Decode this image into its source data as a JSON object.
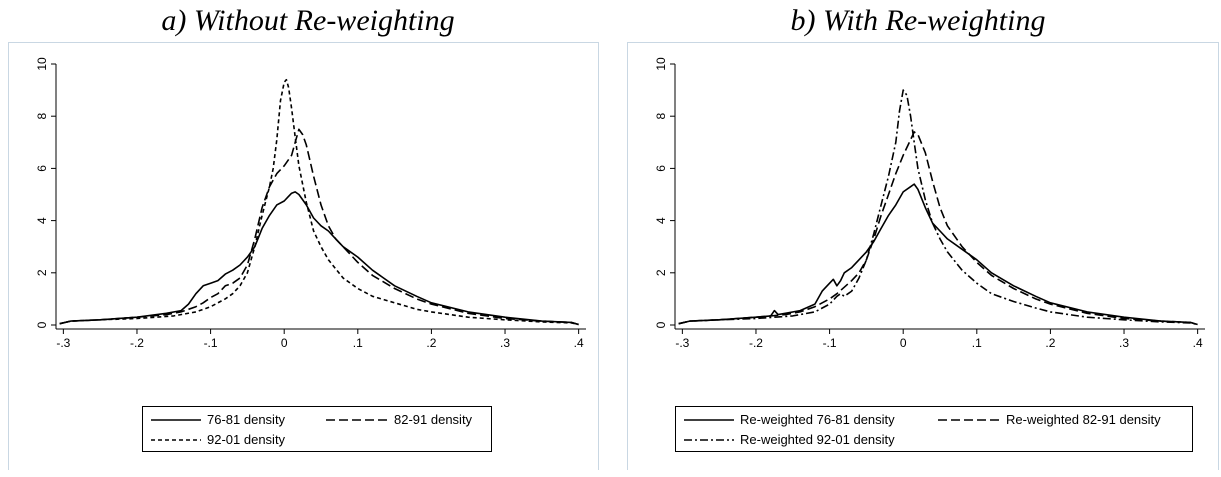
{
  "chart_data": [
    {
      "type": "line",
      "title": "a) Without Re-weighting",
      "xlabel": "",
      "ylabel": "",
      "xlim": [
        -0.31,
        0.41
      ],
      "ylim": [
        0,
        10
      ],
      "x_ticks": [
        -0.3,
        -0.2,
        -0.1,
        0,
        0.1,
        0.2,
        0.3,
        0.4
      ],
      "x_tick_labels": [
        "-.3",
        "-.2",
        "-.1",
        "0",
        ".1",
        ".2",
        ".3",
        ".4"
      ],
      "y_ticks": [
        0,
        2,
        4,
        6,
        8,
        10
      ],
      "y_tick_labels": [
        "0",
        "2",
        "4",
        "6",
        "8",
        "10"
      ],
      "grid": false,
      "legend_position": "bottom",
      "series": [
        {
          "name": "76-81 density",
          "style": "solid",
          "color": "#000000",
          "x": [
            -0.305,
            -0.29,
            -0.25,
            -0.2,
            -0.16,
            -0.14,
            -0.13,
            -0.12,
            -0.11,
            -0.1,
            -0.09,
            -0.08,
            -0.07,
            -0.06,
            -0.05,
            -0.04,
            -0.03,
            -0.02,
            -0.01,
            0,
            0.005,
            0.01,
            0.015,
            0.02,
            0.03,
            0.04,
            0.05,
            0.06,
            0.07,
            0.08,
            0.1,
            0.12,
            0.15,
            0.18,
            0.2,
            0.25,
            0.3,
            0.35,
            0.39,
            0.4
          ],
          "y": [
            0.05,
            0.15,
            0.2,
            0.3,
            0.45,
            0.55,
            0.8,
            1.2,
            1.5,
            1.6,
            1.7,
            1.95,
            2.1,
            2.3,
            2.6,
            3.0,
            3.7,
            4.2,
            4.6,
            4.75,
            4.9,
            5.05,
            5.1,
            5.0,
            4.6,
            4.1,
            3.8,
            3.6,
            3.3,
            3.0,
            2.6,
            2.1,
            1.5,
            1.1,
            0.85,
            0.5,
            0.3,
            0.15,
            0.1,
            0.02
          ]
        },
        {
          "name": "82-91 density",
          "style": "longdash",
          "color": "#000000",
          "x": [
            -0.305,
            -0.29,
            -0.25,
            -0.2,
            -0.16,
            -0.14,
            -0.12,
            -0.11,
            -0.1,
            -0.09,
            -0.08,
            -0.07,
            -0.06,
            -0.05,
            -0.04,
            -0.03,
            -0.02,
            -0.01,
            0,
            0.01,
            0.015,
            0.02,
            0.025,
            0.03,
            0.04,
            0.05,
            0.06,
            0.07,
            0.08,
            0.1,
            0.12,
            0.15,
            0.18,
            0.2,
            0.25,
            0.3,
            0.35,
            0.39,
            0.4
          ],
          "y": [
            0.05,
            0.15,
            0.2,
            0.3,
            0.4,
            0.5,
            0.7,
            0.85,
            1.05,
            1.2,
            1.5,
            1.6,
            1.8,
            2.3,
            3.3,
            4.5,
            5.3,
            5.8,
            6.1,
            6.5,
            7.0,
            7.5,
            7.3,
            6.9,
            5.7,
            4.6,
            3.8,
            3.3,
            3.0,
            2.4,
            1.9,
            1.4,
            1.0,
            0.8,
            0.45,
            0.25,
            0.15,
            0.1,
            0.02
          ]
        },
        {
          "name": "92-01 density",
          "style": "shortdash",
          "color": "#000000",
          "x": [
            -0.305,
            -0.29,
            -0.25,
            -0.2,
            -0.15,
            -0.12,
            -0.1,
            -0.09,
            -0.08,
            -0.07,
            -0.06,
            -0.05,
            -0.04,
            -0.03,
            -0.02,
            -0.015,
            -0.01,
            -0.005,
            0,
            0.003,
            0.006,
            0.01,
            0.015,
            0.02,
            0.03,
            0.04,
            0.05,
            0.06,
            0.08,
            0.1,
            0.12,
            0.15,
            0.18,
            0.2,
            0.25,
            0.3,
            0.35,
            0.39,
            0.4
          ],
          "y": [
            0.05,
            0.15,
            0.2,
            0.25,
            0.35,
            0.5,
            0.7,
            0.85,
            1.0,
            1.2,
            1.5,
            2.0,
            3.0,
            4.2,
            5.3,
            6.0,
            7.1,
            8.6,
            9.3,
            9.4,
            9.1,
            8.3,
            7.2,
            6.1,
            4.7,
            3.6,
            3.0,
            2.5,
            1.8,
            1.4,
            1.1,
            0.85,
            0.6,
            0.5,
            0.3,
            0.2,
            0.12,
            0.08,
            0.02
          ]
        }
      ]
    },
    {
      "type": "line",
      "title": "b) With Re-weighting",
      "xlabel": "",
      "ylabel": "",
      "xlim": [
        -0.31,
        0.41
      ],
      "ylim": [
        0,
        10
      ],
      "x_ticks": [
        -0.3,
        -0.2,
        -0.1,
        0,
        0.1,
        0.2,
        0.3,
        0.4
      ],
      "x_tick_labels": [
        "-.3",
        "-.2",
        "-.1",
        "0",
        ".1",
        ".2",
        ".3",
        ".4"
      ],
      "y_ticks": [
        0,
        2,
        4,
        6,
        8,
        10
      ],
      "y_tick_labels": [
        "0",
        "2",
        "4",
        "6",
        "8",
        "10"
      ],
      "grid": false,
      "legend_position": "bottom",
      "series": [
        {
          "name": "Re-weighted 76-81 density",
          "style": "solid",
          "color": "#000000",
          "x": [
            -0.305,
            -0.29,
            -0.25,
            -0.2,
            -0.18,
            -0.175,
            -0.17,
            -0.16,
            -0.14,
            -0.12,
            -0.11,
            -0.1,
            -0.095,
            -0.09,
            -0.085,
            -0.08,
            -0.07,
            -0.06,
            -0.05,
            -0.04,
            -0.03,
            -0.02,
            -0.01,
            0,
            0.01,
            0.015,
            0.02,
            0.03,
            0.04,
            0.05,
            0.06,
            0.08,
            0.1,
            0.12,
            0.15,
            0.18,
            0.2,
            0.25,
            0.3,
            0.35,
            0.39,
            0.4
          ],
          "y": [
            0.05,
            0.15,
            0.2,
            0.3,
            0.35,
            0.55,
            0.4,
            0.45,
            0.55,
            0.8,
            1.3,
            1.6,
            1.75,
            1.5,
            1.7,
            2.0,
            2.2,
            2.5,
            2.8,
            3.2,
            3.7,
            4.2,
            4.6,
            5.1,
            5.3,
            5.4,
            5.2,
            4.5,
            3.9,
            3.6,
            3.3,
            2.9,
            2.5,
            2.0,
            1.5,
            1.1,
            0.85,
            0.5,
            0.3,
            0.15,
            0.1,
            0.02
          ]
        },
        {
          "name": "Re-weighted 82-91 density",
          "style": "longdash",
          "color": "#000000",
          "x": [
            -0.305,
            -0.29,
            -0.25,
            -0.2,
            -0.16,
            -0.14,
            -0.12,
            -0.1,
            -0.09,
            -0.08,
            -0.07,
            -0.06,
            -0.05,
            -0.04,
            -0.03,
            -0.02,
            -0.01,
            0,
            0.01,
            0.015,
            0.02,
            0.03,
            0.04,
            0.05,
            0.06,
            0.08,
            0.1,
            0.12,
            0.15,
            0.18,
            0.2,
            0.25,
            0.3,
            0.35,
            0.39,
            0.4
          ],
          "y": [
            0.05,
            0.15,
            0.2,
            0.3,
            0.4,
            0.5,
            0.7,
            1.0,
            1.2,
            1.45,
            1.7,
            2.0,
            2.5,
            3.3,
            4.2,
            5.0,
            5.8,
            6.5,
            7.1,
            7.4,
            7.3,
            6.6,
            5.5,
            4.5,
            3.8,
            3.0,
            2.4,
            1.9,
            1.4,
            1.0,
            0.8,
            0.45,
            0.25,
            0.15,
            0.1,
            0.02
          ]
        },
        {
          "name": "Re-weighted 92-01 density",
          "style": "dashdot",
          "color": "#000000",
          "x": [
            -0.305,
            -0.29,
            -0.25,
            -0.2,
            -0.15,
            -0.12,
            -0.1,
            -0.09,
            -0.085,
            -0.08,
            -0.07,
            -0.06,
            -0.05,
            -0.04,
            -0.03,
            -0.02,
            -0.01,
            -0.005,
            0,
            0.005,
            0.01,
            0.015,
            0.02,
            0.03,
            0.04,
            0.05,
            0.06,
            0.08,
            0.1,
            0.12,
            0.15,
            0.18,
            0.2,
            0.25,
            0.3,
            0.35,
            0.39,
            0.4
          ],
          "y": [
            0.05,
            0.15,
            0.2,
            0.25,
            0.35,
            0.5,
            0.8,
            1.1,
            1.2,
            1.1,
            1.3,
            1.8,
            2.5,
            3.5,
            4.6,
            5.7,
            7.0,
            8.2,
            9.0,
            8.8,
            8.0,
            7.0,
            6.0,
            4.8,
            3.9,
            3.3,
            2.8,
            2.1,
            1.6,
            1.2,
            0.9,
            0.65,
            0.5,
            0.3,
            0.2,
            0.12,
            0.08,
            0.02
          ]
        }
      ]
    }
  ]
}
